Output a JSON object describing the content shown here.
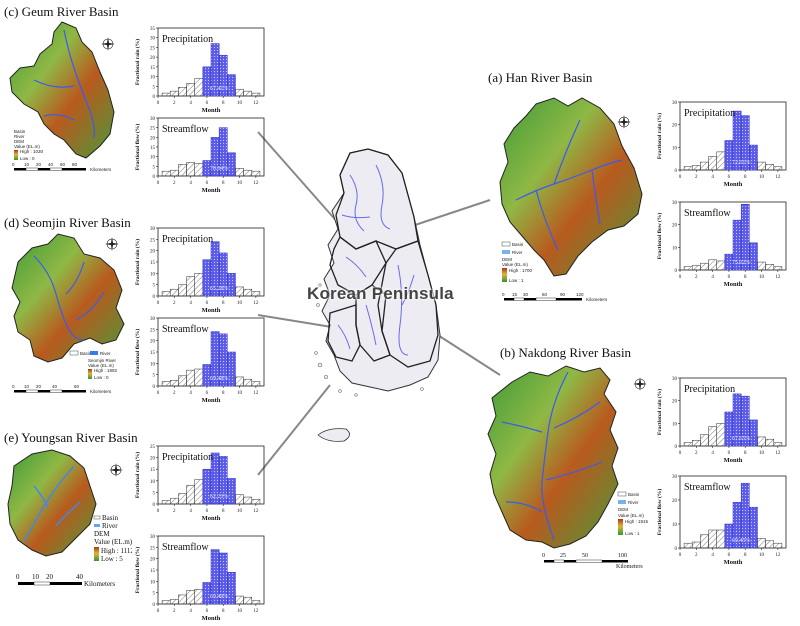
{
  "center": {
    "label": "Korean Peninsula"
  },
  "legend_common": {
    "north": "N",
    "south": "S",
    "west": "W",
    "east": "E"
  },
  "basins": [
    {
      "id": "geum",
      "title": "(c) Geum River Basin",
      "legend": {
        "basin": "Basin",
        "river": "River",
        "dem": "DEM",
        "value": "Value (EL.m)",
        "high": "High : 1030",
        "low": "Low : 0"
      },
      "scale": {
        "ticks": [
          "0",
          "10",
          "20",
          "40",
          "60",
          "80"
        ],
        "unit": "Kilometers"
      }
    },
    {
      "id": "seomjin",
      "title": "(d) Seomjin River Basin",
      "legend": {
        "basin": "Basin",
        "river": "River",
        "dem": "Seomjin River",
        "value": "Value (EL.m)",
        "high": "High : 1892",
        "low": "Low : 0"
      },
      "scale": {
        "ticks": [
          "0",
          "10",
          "20",
          "40",
          "60"
        ],
        "unit": "Kilometers"
      }
    },
    {
      "id": "youngsan",
      "title": "(e) Youngsan River Basin",
      "legend": {
        "basin": "Basin",
        "river": "River",
        "dem": "DEM",
        "value": "Value (EL.m)",
        "high": "High : 1112",
        "low": "Low : 5"
      },
      "scale": {
        "ticks": [
          "0",
          "10",
          "20",
          "40"
        ],
        "unit": "Kilometers"
      }
    },
    {
      "id": "han",
      "title": "(a) Han River Basin",
      "legend": {
        "basin": "Basin",
        "river": "River",
        "dem": "DEM",
        "value": "Value (EL.m)",
        "high": "High : 1700",
        "low": "Low : 1"
      },
      "scale": {
        "ticks": [
          "0",
          "15",
          "30",
          "60",
          "90",
          "120"
        ],
        "unit": "Kilometers"
      }
    },
    {
      "id": "nakdong",
      "title": "(b) Nakdong River Basin",
      "legend": {
        "basin": "Basin",
        "river": "River",
        "dem": "DEM",
        "value": "Value (EL.m)",
        "high": "High : 1915",
        "low": "Low : 1"
      },
      "scale": {
        "ticks": [
          "0",
          "25",
          "50",
          "100"
        ],
        "unit": "Kilometers"
      }
    }
  ],
  "chart_data": [
    {
      "basin": "geum",
      "type": "bar",
      "title": "Precipitation",
      "xlabel": "Month",
      "ylabel": "Fractional rain (%)",
      "categories": [
        1,
        2,
        3,
        4,
        5,
        6,
        7,
        8,
        9,
        10,
        11,
        12
      ],
      "values": [
        1.5,
        2.5,
        4.5,
        6.5,
        9,
        15,
        27,
        21,
        11,
        3.5,
        2.5,
        1.5
      ],
      "highlight_months": [
        6,
        7,
        8,
        9
      ],
      "highlight_label": "67.41%",
      "ylim": [
        0,
        35
      ],
      "yticks": [
        0,
        5,
        10,
        15,
        20,
        25,
        30,
        35
      ],
      "xticks": [
        0,
        2,
        4,
        6,
        8,
        10,
        12
      ]
    },
    {
      "basin": "geum",
      "type": "bar",
      "title": "Streamflow",
      "xlabel": "Month",
      "ylabel": "Fractional flow (%)",
      "categories": [
        1,
        2,
        3,
        4,
        5,
        6,
        7,
        8,
        9,
        10,
        11,
        12
      ],
      "values": [
        2.5,
        3,
        6,
        7,
        6.5,
        8,
        20,
        25,
        12,
        4,
        3,
        2.5
      ],
      "highlight_months": [
        6,
        7,
        8,
        9
      ],
      "highlight_label": "70.84%",
      "ylim": [
        0,
        30
      ],
      "yticks": [
        0,
        5,
        10,
        15,
        20,
        25,
        30
      ],
      "xticks": [
        0,
        2,
        4,
        6,
        8,
        10,
        12
      ]
    },
    {
      "basin": "seomjin",
      "type": "bar",
      "title": "Precipitation",
      "xlabel": "Month",
      "ylabel": "Fractional rain (%)",
      "categories": [
        1,
        2,
        3,
        4,
        5,
        6,
        7,
        8,
        9,
        10,
        11,
        12
      ],
      "values": [
        2,
        3,
        5,
        8.5,
        10,
        16,
        24,
        19,
        10,
        4,
        3,
        2
      ],
      "highlight_months": [
        6,
        7,
        8,
        9
      ],
      "highlight_label": "65.28%",
      "ylim": [
        0,
        30
      ],
      "yticks": [
        0,
        5,
        10,
        15,
        20,
        25,
        30
      ],
      "xticks": [
        0,
        2,
        4,
        6,
        8,
        10,
        12
      ]
    },
    {
      "basin": "seomjin",
      "type": "bar",
      "title": "Streamflow",
      "xlabel": "Month",
      "ylabel": "Fractional flow (%)",
      "categories": [
        1,
        2,
        3,
        4,
        5,
        6,
        7,
        8,
        9,
        10,
        11,
        12
      ],
      "values": [
        2,
        2.5,
        4.5,
        7,
        7.5,
        9.5,
        24,
        23,
        15,
        4,
        3,
        2
      ],
      "highlight_months": [
        6,
        7,
        8,
        9
      ],
      "highlight_label": "69.48%",
      "ylim": [
        0,
        30
      ],
      "yticks": [
        0,
        5,
        10,
        15,
        20,
        25,
        30
      ],
      "xticks": [
        0,
        2,
        4,
        6,
        8,
        10,
        12
      ]
    },
    {
      "basin": "youngsan",
      "type": "bar",
      "title": "Precipitation",
      "xlabel": "Month",
      "ylabel": "Fractional rain (%)",
      "categories": [
        1,
        2,
        3,
        4,
        5,
        6,
        7,
        8,
        9,
        10,
        11,
        12
      ],
      "values": [
        1.5,
        2.5,
        4.5,
        8,
        10.5,
        15,
        22,
        20.5,
        11,
        4,
        3,
        2
      ],
      "highlight_months": [
        6,
        7,
        8,
        9
      ],
      "highlight_label": "62.23%",
      "ylim": [
        0,
        25
      ],
      "yticks": [
        0,
        5,
        10,
        15,
        20,
        25
      ],
      "xticks": [
        0,
        2,
        4,
        6,
        8,
        10,
        12
      ]
    },
    {
      "basin": "youngsan",
      "type": "bar",
      "title": "Streamflow",
      "xlabel": "Month",
      "ylabel": "Fractional flow (%)",
      "categories": [
        1,
        2,
        3,
        4,
        5,
        6,
        7,
        8,
        9,
        10,
        11,
        12
      ],
      "values": [
        1.5,
        2,
        4,
        6,
        6.5,
        9.5,
        24,
        22.5,
        14,
        3.5,
        3,
        1.5
      ],
      "highlight_months": [
        6,
        7,
        8,
        9
      ],
      "highlight_label": "69.49%",
      "ylim": [
        0,
        30
      ],
      "yticks": [
        0,
        5,
        10,
        15,
        20,
        25,
        30
      ],
      "xticks": [
        0,
        2,
        4,
        6,
        8,
        10,
        12
      ]
    },
    {
      "basin": "han",
      "type": "bar",
      "title": "Precipitation",
      "xlabel": "Month",
      "ylabel": "Fractional rain (%)",
      "categories": [
        1,
        2,
        3,
        4,
        5,
        6,
        7,
        8,
        9,
        10,
        11,
        12
      ],
      "values": [
        1.5,
        2,
        3.5,
        6,
        8,
        13,
        26,
        24,
        11,
        3.5,
        2.5,
        1.5
      ],
      "highlight_months": [
        6,
        7,
        8,
        9
      ],
      "highlight_label": "72.01%",
      "ylim": [
        0,
        30
      ],
      "yticks": [
        0,
        10,
        20,
        30
      ],
      "xticks": [
        0,
        2,
        4,
        6,
        8,
        10,
        12
      ]
    },
    {
      "basin": "han",
      "type": "bar",
      "title": "Streamflow",
      "xlabel": "Month",
      "ylabel": "Fractional flow (%)",
      "categories": [
        1,
        2,
        3,
        4,
        5,
        6,
        7,
        8,
        9,
        10,
        11,
        12
      ],
      "values": [
        1.5,
        2,
        3,
        4.5,
        4,
        7,
        22,
        29,
        12,
        3.5,
        2.5,
        1.5
      ],
      "highlight_months": [
        6,
        7,
        8,
        9
      ],
      "highlight_label": "75.02%",
      "ylim": [
        0,
        30
      ],
      "yticks": [
        0,
        10,
        20,
        30
      ],
      "xticks": [
        0,
        2,
        4,
        6,
        8,
        10,
        12
      ]
    },
    {
      "basin": "nakdong",
      "type": "bar",
      "title": "Precipitation",
      "xlabel": "Month",
      "ylabel": "Fractional rain (%)",
      "categories": [
        1,
        2,
        3,
        4,
        5,
        6,
        7,
        8,
        9,
        10,
        11,
        12
      ],
      "values": [
        1.5,
        2.5,
        5,
        8.5,
        10,
        15,
        23,
        22,
        11.5,
        4,
        3,
        1.5
      ],
      "highlight_months": [
        6,
        7,
        8,
        9
      ],
      "highlight_label": "67.65%",
      "ylim": [
        0,
        30
      ],
      "yticks": [
        0,
        10,
        20,
        30
      ],
      "xticks": [
        0,
        2,
        4,
        6,
        8,
        10,
        12
      ]
    },
    {
      "basin": "nakdong",
      "type": "bar",
      "title": "Streamflow",
      "xlabel": "Month",
      "ylabel": "Fractional flow (%)",
      "categories": [
        1,
        2,
        3,
        4,
        5,
        6,
        7,
        8,
        9,
        10,
        11,
        12
      ],
      "values": [
        2,
        2.5,
        5.5,
        7.5,
        7.5,
        10,
        19,
        27,
        17,
        4,
        3,
        2
      ],
      "highlight_months": [
        6,
        7,
        8,
        9
      ],
      "highlight_label": "69.45%",
      "ylim": [
        0,
        30
      ],
      "yticks": [
        0,
        10,
        20,
        30
      ],
      "xticks": [
        0,
        2,
        4,
        6,
        8,
        10,
        12
      ]
    }
  ]
}
